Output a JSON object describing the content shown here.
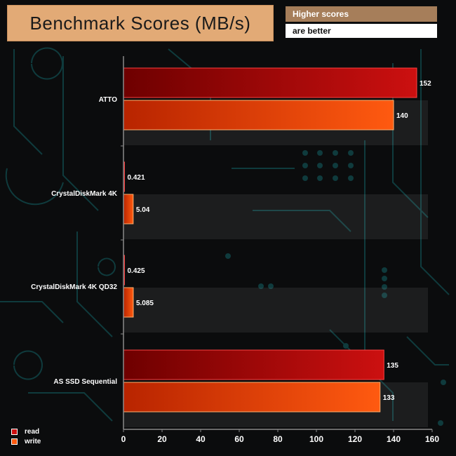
{
  "header": {
    "title": "Benchmark Scores (MB/s)",
    "note_line1": "Higher scores",
    "note_line2": "are better"
  },
  "colors": {
    "read": "#cc1010",
    "write": "#ff5a10",
    "title_bg": "#e2aa76",
    "note_bg": "#a67e5a",
    "background": "#0b0c0d",
    "circuit": "#0f3b3d"
  },
  "chart_data": {
    "type": "bar",
    "orientation": "horizontal",
    "categories": [
      "ATTO",
      "CrystalDiskMark 4K",
      "CrystalDiskMark 4K QD32",
      "AS SSD Sequential"
    ],
    "series": [
      {
        "name": "read",
        "values": [
          152,
          0.421,
          0.425,
          135
        ],
        "labels": [
          "152",
          "0.421",
          "0.425",
          "135"
        ]
      },
      {
        "name": "write",
        "values": [
          140,
          5.04,
          5.085,
          133
        ],
        "labels": [
          "140",
          "5.04",
          "5.085",
          "133"
        ]
      }
    ],
    "xlim": [
      0,
      160
    ],
    "xticks": [
      "0",
      "20",
      "40",
      "60",
      "80",
      "100",
      "120",
      "140",
      "160"
    ],
    "legend_position": "bottom-left",
    "grid": false
  }
}
